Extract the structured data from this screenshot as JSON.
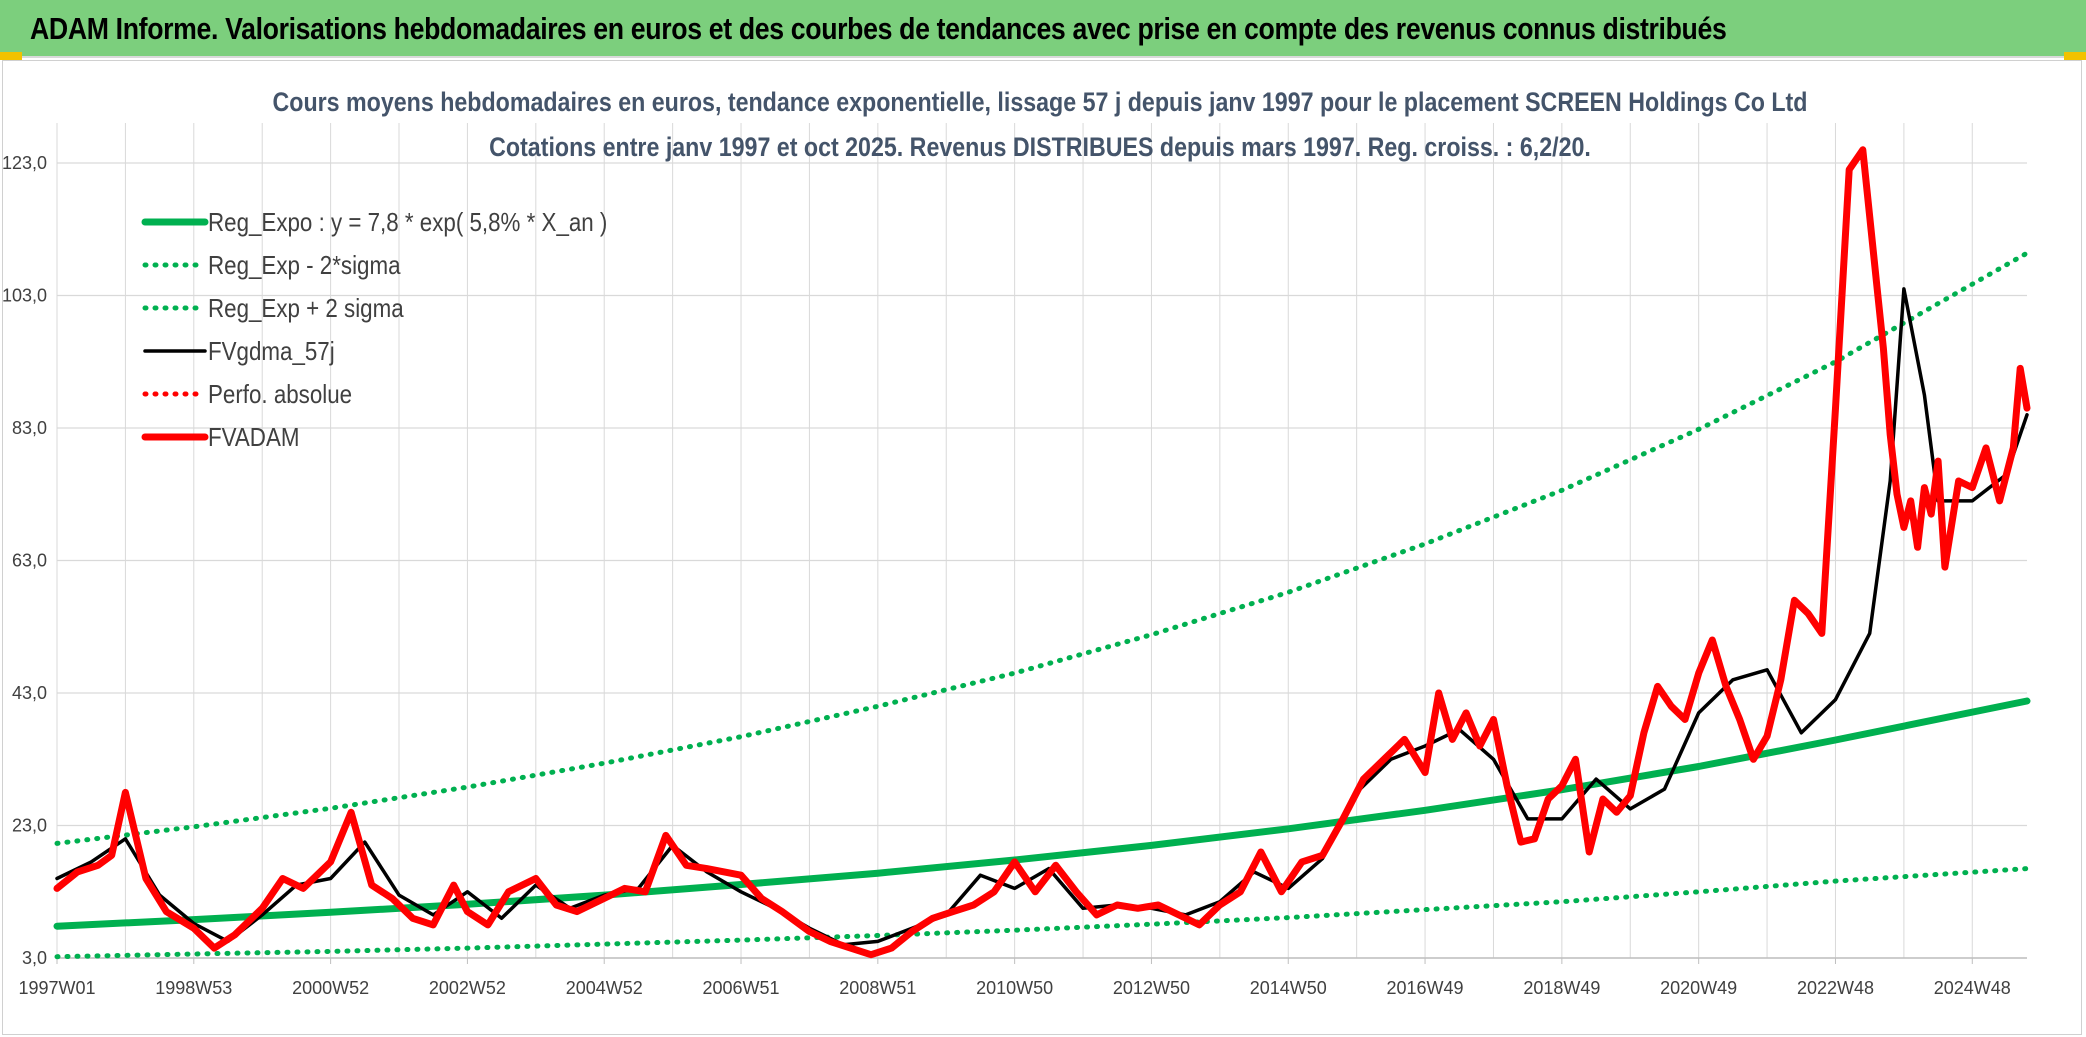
{
  "header": {
    "banner_title": "ADAM Informe. Valorisations hebdomadaires en euros et des courbes de tendances avec prise en compte des revenus connus distribués"
  },
  "colors": {
    "banner_bg": "#7ccf7d",
    "title_text": "#44546a",
    "reg_expo": "#00b050",
    "fvgdma": "#000000",
    "fvadam": "#ff0000",
    "perfo": "#ff0000",
    "grid": "#d9d9d9",
    "corner": "#f2c200"
  },
  "chart_data": {
    "type": "line",
    "title_line1": "Cours moyens hebdomadaires en euros, tendance exponentielle, lissage 57 j depuis janv 1997 pour le placement SCREEN Holdings Co Ltd",
    "title_line2": "Cotations entre janv 1997 et oct 2025. Revenus DISTRIBUES depuis mars 1997. Reg. croiss. : 6,2/20.",
    "xlabel": "",
    "ylabel": "",
    "ylim": [
      3,
      123
    ],
    "y_ticks": [
      3,
      23,
      43,
      63,
      83,
      103,
      123
    ],
    "y_tick_labels": [
      "3,0",
      "23,0",
      "43,0",
      "63,0",
      "83,0",
      "103,0",
      "123,0"
    ],
    "x_range": [
      1997.0,
      2025.8
    ],
    "x_ticks": [
      1997.0,
      1999.0,
      2001.0,
      2003.0,
      2005.0,
      2007.0,
      2009.0,
      2011.0,
      2013.0,
      2015.0,
      2017.0,
      2019.0,
      2021.0,
      2023.0,
      2025.0
    ],
    "x_tick_labels": [
      "1997W01",
      "1998W53",
      "2000W52",
      "2002W52",
      "2004W52",
      "2006W51",
      "2008W51",
      "2010W50",
      "2012W50",
      "2014W50",
      "2016W49",
      "2018W49",
      "2020W49",
      "2022W48",
      "2024W48"
    ],
    "grid": true,
    "legend_position": "top-left",
    "series": [
      {
        "name": "Reg_Expo : y = 7,8 * exp( 5,8% *  X_an )",
        "style": "solid-thick",
        "color": "#00b050",
        "x": [
          1997,
          1999,
          2001,
          2003,
          2005,
          2007,
          2009,
          2011,
          2013,
          2015,
          2017,
          2019,
          2021,
          2023,
          2025.8
        ],
        "values": [
          7.8,
          8.8,
          9.9,
          11.1,
          12.5,
          14.1,
          15.8,
          17.8,
          20.0,
          22.5,
          25.3,
          28.4,
          31.9,
          35.9,
          41.8
        ]
      },
      {
        "name": "Reg_Exp - 2*sigma",
        "style": "dotted",
        "color": "#00b050",
        "x": [
          1997,
          1999,
          2001,
          2003,
          2005,
          2007,
          2009,
          2011,
          2013,
          2015,
          2017,
          2019,
          2021,
          2023,
          2025.8
        ],
        "values": [
          3.2,
          3.6,
          4.0,
          4.5,
          5.1,
          5.7,
          6.4,
          7.2,
          8.1,
          9.1,
          10.3,
          11.5,
          13.0,
          14.6,
          16.5
        ]
      },
      {
        "name": "Reg_Exp + 2 sigma",
        "style": "dotted",
        "color": "#00b050",
        "x": [
          1997,
          1999,
          2001,
          2003,
          2005,
          2007,
          2009,
          2011,
          2013,
          2015,
          2017,
          2019,
          2021,
          2023,
          2025.8
        ],
        "values": [
          20.3,
          22.8,
          25.6,
          28.8,
          32.4,
          36.4,
          41.0,
          46.0,
          51.8,
          58.2,
          65.5,
          73.6,
          82.8,
          93.0,
          109.4
        ]
      },
      {
        "name": "FVgdma_57j",
        "style": "solid",
        "color": "#000000",
        "x": [
          1997.0,
          1997.5,
          1998.0,
          1998.5,
          1999.0,
          1999.5,
          2000.0,
          2000.5,
          2001.0,
          2001.5,
          2002.0,
          2002.5,
          2003.0,
          2003.5,
          2004.0,
          2004.5,
          2005.0,
          2005.5,
          2006.0,
          2006.5,
          2007.0,
          2007.5,
          2008.0,
          2008.5,
          2009.0,
          2009.5,
          2010.0,
          2010.5,
          2011.0,
          2011.5,
          2012.0,
          2012.5,
          2013.0,
          2013.5,
          2014.0,
          2014.5,
          2015.0,
          2015.5,
          2016.0,
          2016.5,
          2017.0,
          2017.5,
          2018.0,
          2018.5,
          2019.0,
          2019.5,
          2020.0,
          2020.5,
          2021.0,
          2021.5,
          2022.0,
          2022.5,
          2023.0,
          2023.5,
          2023.8,
          2024.0,
          2024.3,
          2024.5,
          2025.0,
          2025.5,
          2025.8
        ],
        "values": [
          15.0,
          17.5,
          21.0,
          12.5,
          8.2,
          5.5,
          9.5,
          14.0,
          15.0,
          20.5,
          12.5,
          9.5,
          13.0,
          9.0,
          14.0,
          10.5,
          12.5,
          13.5,
          20.0,
          16.0,
          13.0,
          10.5,
          7.5,
          5.0,
          5.5,
          7.5,
          9.5,
          15.5,
          13.5,
          16.5,
          10.5,
          11.0,
          10.5,
          9.5,
          11.5,
          16.0,
          13.5,
          18.0,
          28.0,
          33.0,
          35.0,
          37.5,
          33.0,
          24.0,
          24.0,
          30.0,
          25.5,
          28.5,
          40.0,
          45.0,
          46.5,
          37.0,
          42.0,
          52.0,
          75.0,
          104.0,
          88.0,
          72.0,
          72.0,
          76.0,
          85.0
        ]
      },
      {
        "name": "Perfo. absolue",
        "style": "dotted",
        "color": "#ff0000",
        "x": [],
        "values": []
      },
      {
        "name": "FVADAM",
        "style": "solid-thick",
        "color": "#ff0000",
        "x": [
          1997.0,
          1997.3,
          1997.6,
          1997.8,
          1998.0,
          1998.3,
          1998.6,
          1999.0,
          1999.3,
          1999.6,
          2000.0,
          2000.3,
          2000.6,
          2001.0,
          2001.3,
          2001.6,
          2001.9,
          2002.2,
          2002.5,
          2002.8,
          2003.0,
          2003.3,
          2003.6,
          2004.0,
          2004.3,
          2004.6,
          2005.0,
          2005.3,
          2005.6,
          2005.9,
          2006.2,
          2006.5,
          2007.0,
          2007.3,
          2007.6,
          2008.0,
          2008.3,
          2008.6,
          2008.9,
          2009.2,
          2009.5,
          2009.8,
          2010.1,
          2010.4,
          2010.7,
          2011.0,
          2011.3,
          2011.6,
          2011.9,
          2012.2,
          2012.5,
          2012.8,
          2013.1,
          2013.4,
          2013.7,
          2014.0,
          2014.3,
          2014.6,
          2014.9,
          2015.2,
          2015.5,
          2015.8,
          2016.1,
          2016.4,
          2016.7,
          2017.0,
          2017.2,
          2017.4,
          2017.6,
          2017.8,
          2018.0,
          2018.2,
          2018.4,
          2018.6,
          2018.8,
          2019.0,
          2019.2,
          2019.4,
          2019.6,
          2019.8,
          2020.0,
          2020.2,
          2020.4,
          2020.6,
          2020.8,
          2021.0,
          2021.2,
          2021.4,
          2021.6,
          2021.8,
          2022.0,
          2022.2,
          2022.4,
          2022.6,
          2022.8,
          2023.0,
          2023.2,
          2023.4,
          2023.6,
          2023.7,
          2023.8,
          2023.9,
          2024.0,
          2024.1,
          2024.2,
          2024.3,
          2024.4,
          2024.5,
          2024.6,
          2024.8,
          2025.0,
          2025.2,
          2025.4,
          2025.6,
          2025.7,
          2025.8
        ],
        "values": [
          13.5,
          16.0,
          17.0,
          18.5,
          28.0,
          15.0,
          10.0,
          7.5,
          4.5,
          6.5,
          10.5,
          15.0,
          13.5,
          17.5,
          25.0,
          14.0,
          12.0,
          9.0,
          8.0,
          14.0,
          10.0,
          8.0,
          13.0,
          15.0,
          11.0,
          10.0,
          12.0,
          13.5,
          13.0,
          21.5,
          17.0,
          16.5,
          15.5,
          12.0,
          10.0,
          7.0,
          5.5,
          4.5,
          3.5,
          4.5,
          7.0,
          9.0,
          10.0,
          11.0,
          13.0,
          17.5,
          13.0,
          17.0,
          13.0,
          9.5,
          11.0,
          10.5,
          11.0,
          9.5,
          8.0,
          11.0,
          13.0,
          19.0,
          13.0,
          17.5,
          18.5,
          24.0,
          30.0,
          33.0,
          36.0,
          31.0,
          43.0,
          36.0,
          40.0,
          35.0,
          39.0,
          29.0,
          20.5,
          21.0,
          27.0,
          29.0,
          33.0,
          19.0,
          27.0,
          25.0,
          27.5,
          37.0,
          44.0,
          41.0,
          39.0,
          46.0,
          51.0,
          44.0,
          39.0,
          33.0,
          36.5,
          45.0,
          57.0,
          55.0,
          52.0,
          86.0,
          122.0,
          125.0,
          105.0,
          95.0,
          82.0,
          73.0,
          68.0,
          72.0,
          65.0,
          74.0,
          70.0,
          78.0,
          62.0,
          75.0,
          74.0,
          80.0,
          72.0,
          80.0,
          92.0,
          86.0
        ]
      }
    ]
  }
}
